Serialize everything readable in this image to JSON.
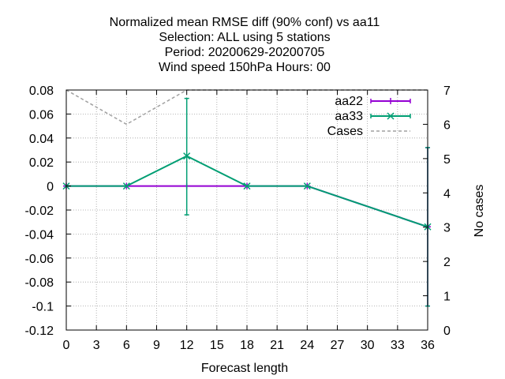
{
  "chart_data": {
    "type": "line",
    "title_lines": [
      "Normalized mean RMSE diff (90% conf) vs aa11",
      "Selection: ALL using     5 stations",
      "Period: 20200629-20200705",
      "Wind speed 150hPa   Hours:  00"
    ],
    "xlabel": "Forecast length",
    "ylabel": "",
    "y2label": "No cases",
    "xlim": [
      0,
      36
    ],
    "ylim": [
      -0.12,
      0.08
    ],
    "y2lim": [
      0,
      7
    ],
    "xticks": [
      0,
      3,
      6,
      9,
      12,
      15,
      18,
      21,
      24,
      27,
      30,
      33,
      36
    ],
    "xtick_labels": [
      "0",
      "3",
      "6",
      "9",
      "12",
      "15",
      "18",
      "21",
      "24",
      "27",
      "30",
      "33",
      "36"
    ],
    "yticks": [
      -0.12,
      -0.1,
      -0.08,
      -0.06,
      -0.04,
      -0.02,
      0,
      0.02,
      0.04,
      0.06,
      0.08
    ],
    "ytick_labels": [
      "-0.12",
      "-0.1",
      "-0.08",
      "-0.06",
      "-0.04",
      "-0.02",
      "0",
      "0.02",
      "0.04",
      "0.06",
      "0.08"
    ],
    "y2ticks": [
      0,
      1,
      2,
      3,
      4,
      5,
      6,
      7
    ],
    "y2tick_labels": [
      "0",
      "1",
      "2",
      "3",
      "4",
      "5",
      "6",
      "7"
    ],
    "grid": true,
    "legend_position": "top-right",
    "x": [
      0,
      6,
      12,
      18,
      24,
      36
    ],
    "series": [
      {
        "name": "aa22",
        "color": "#9400d3",
        "marker": "plus",
        "values": [
          0,
          0,
          0,
          0,
          0,
          -0.034
        ],
        "err_low": [
          0,
          0,
          0,
          0,
          0,
          -0.1
        ],
        "err_high": [
          0,
          0,
          0,
          0,
          0,
          0.032
        ]
      },
      {
        "name": "aa33",
        "color": "#009e73",
        "marker": "cross",
        "values": [
          0,
          0,
          0.025,
          0,
          0,
          -0.034
        ],
        "err_low": [
          0,
          0,
          -0.024,
          0,
          0,
          -0.1
        ],
        "err_high": [
          0,
          0,
          0.073,
          0,
          0,
          0.032
        ]
      }
    ],
    "cases": {
      "name": "Cases",
      "color": "#a0a0a0",
      "axis": "y2",
      "values": [
        7,
        6,
        7,
        7,
        7,
        7
      ]
    }
  }
}
